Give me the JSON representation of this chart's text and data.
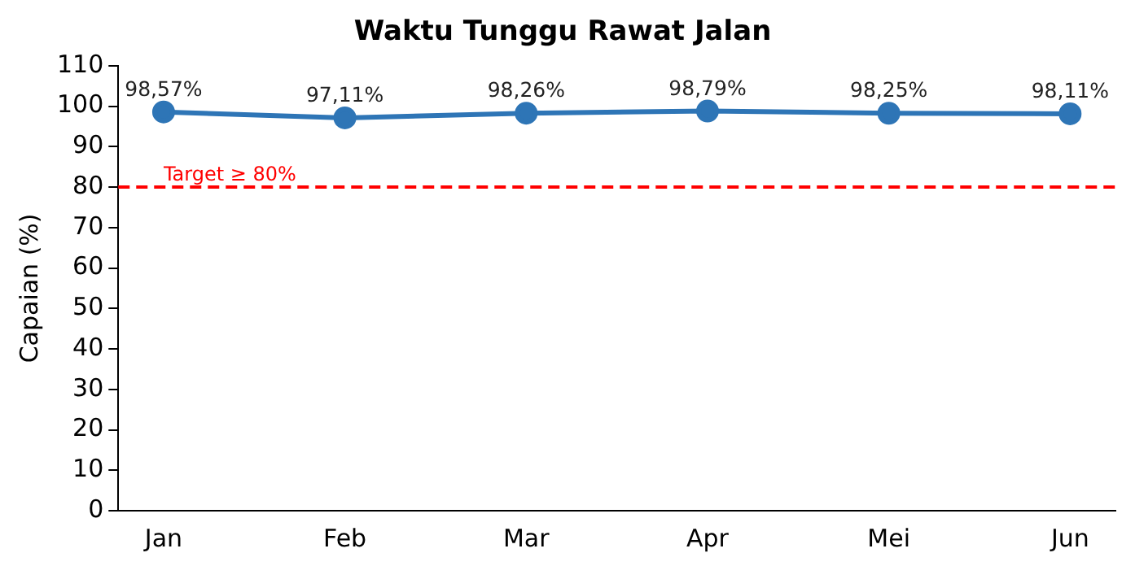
{
  "chart_data": {
    "type": "line",
    "title": "Waktu Tunggu Rawat Jalan",
    "ylabel": "Capaian (%)",
    "categories": [
      "Jan",
      "Feb",
      "Mar",
      "Apr",
      "Mei",
      "Jun"
    ],
    "series": [
      {
        "color": "#2e75b6",
        "values": [
          98.57,
          97.11,
          98.26,
          98.79,
          98.25,
          98.11
        ],
        "value_labels": [
          "98,57%",
          "97,11%",
          "98,26%",
          "98,79%",
          "98,25%",
          "98,11%"
        ]
      }
    ],
    "ylim": [
      0,
      110
    ],
    "yticks": [
      0,
      10,
      20,
      30,
      40,
      50,
      60,
      70,
      80,
      90,
      100,
      110
    ],
    "ref_lines": [
      {
        "axis": "y",
        "value": 80,
        "label": "Target ≥ 80%",
        "color": "#ff0000",
        "line_style": "dashed"
      }
    ],
    "marker": "circle",
    "line_style": "solid",
    "grid": false,
    "legend": false
  }
}
